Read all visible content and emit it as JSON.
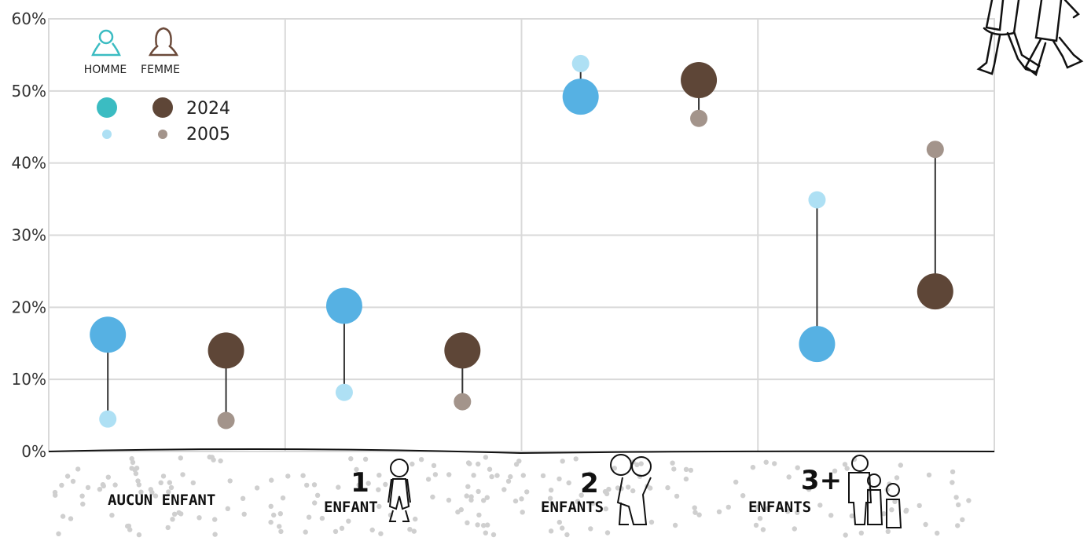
{
  "chart_data": {
    "type": "dumbbell",
    "y_ticks": [
      "0%",
      "10%",
      "20%",
      "30%",
      "40%",
      "50%",
      "60%"
    ],
    "ylim": [
      0,
      60
    ],
    "grid": true,
    "categories": [
      {
        "num": "",
        "label": "AUCUN ENFANT"
      },
      {
        "num": "1",
        "label": "ENFANT"
      },
      {
        "num": "2",
        "label": "ENFANTS"
      },
      {
        "num": "3+",
        "label": "ENFANTS"
      }
    ],
    "series": [
      {
        "name": "HOMME",
        "color_2024": "#56b1e3",
        "color_2005": "#aee0f4",
        "values_2024": [
          16.2,
          20.2,
          49.2,
          14.9
        ],
        "values_2005": [
          4.5,
          8.2,
          53.8,
          34.9
        ]
      },
      {
        "name": "FEMME",
        "color_2024": "#5e4637",
        "color_2005": "#a3948b",
        "values_2024": [
          14.0,
          14.0,
          51.5,
          22.2
        ],
        "values_2005": [
          4.3,
          6.9,
          46.2,
          41.9
        ]
      }
    ],
    "legend": {
      "homme": "HOMME",
      "femme": "FEMME",
      "year_2024": "2024",
      "year_2005": "2005",
      "homme_icon_color": "#3bbcc2",
      "femme_icon_color": "#6b4a3a",
      "placement": "top-left"
    }
  }
}
